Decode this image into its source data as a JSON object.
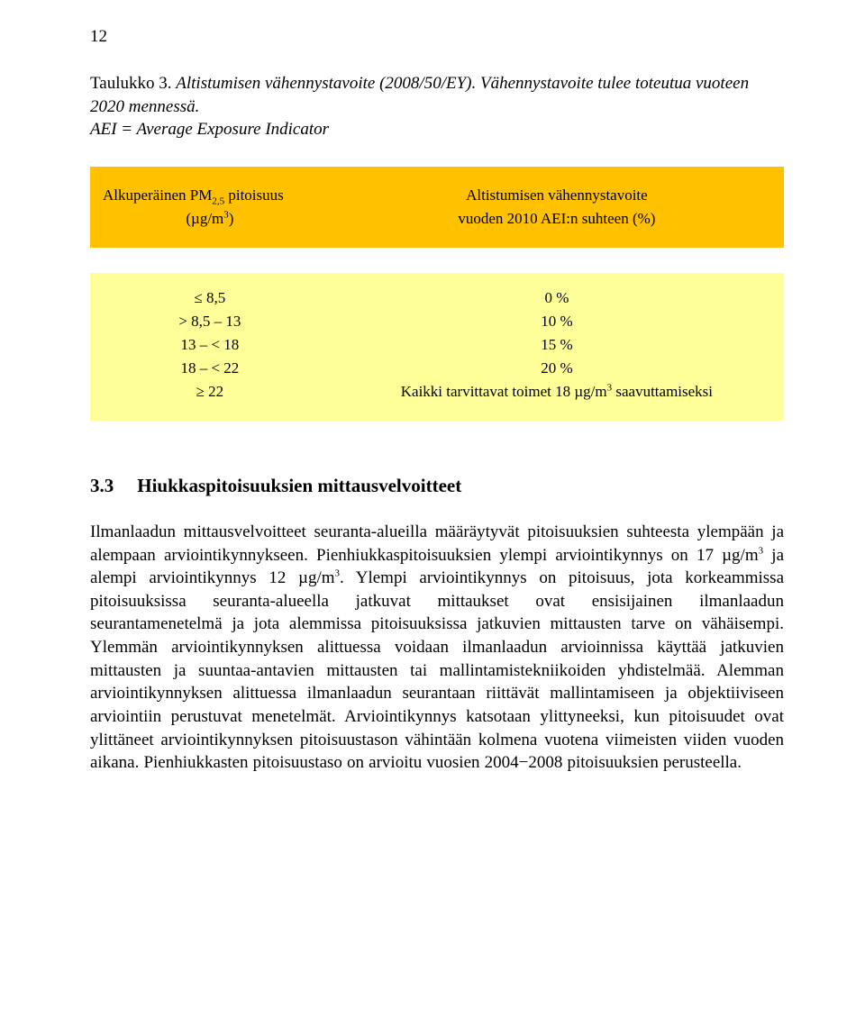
{
  "page_number": "12",
  "caption": {
    "label": "Taulukko 3.",
    "title_part1": "Altistumisen vähennystavoite (2008/50/EY). Vähennystavoite tulee toteutua vuoteen 2020 mennessä.",
    "title_part2": "AEI = Average Exposure Indicator"
  },
  "table": {
    "colors": {
      "header_bg": "#ffc100",
      "body_bg": "#ffff99",
      "text": "#000000"
    },
    "header_fontsize": 17,
    "body_fontsize": 17,
    "header": {
      "col1_line1": "Alkuperäinen PM",
      "col1_pm_sub": "2,5",
      "col1_line1_suffix": " pitoisuus",
      "col1_line2_pre": "(µg/m",
      "col1_line2_sup": "3",
      "col1_line2_post": ")",
      "col2_line1": "Altistumisen vähennystavoite",
      "col2_line2": "vuoden 2010 AEI:n suhteen (%)"
    },
    "rows": [
      {
        "c1": "≤ 8,5",
        "c2": "0 %"
      },
      {
        "c1": "> 8,5 – 13",
        "c2": "10 %"
      },
      {
        "c1": "13 – < 18",
        "c2": "15 %"
      },
      {
        "c1": "18 – < 22",
        "c2": "20 %"
      },
      {
        "c1": "≥ 22",
        "c2_pre": "Kaikki tarvittavat toimet 18 µg/m",
        "c2_sup": "3",
        "c2_post": " saavuttamiseksi"
      }
    ]
  },
  "section": {
    "number": "3.3",
    "title": "Hiukkaspitoisuuksien mittausvelvoitteet"
  },
  "paragraph": {
    "t1": "Ilmanlaadun mittausvelvoitteet seuranta-alueilla määräytyvät pitoisuuksien suhteesta ylempään ja alempaan arviointikynnykseen. Pienhiukkaspitoisuuksien ylempi arviointikynnys on 17 µg/m",
    "s1": "3",
    "t2": " ja alempi arviointikynnys 12 µg/m",
    "s2": "3",
    "t3": ". Ylempi arviointikynnys on pitoisuus, jota korkeammissa pitoisuuksissa seuranta-alueella jatkuvat mittaukset ovat ensisijainen ilmanlaadun seurantamenetelmä ja jota alemmissa pitoisuuksissa jatkuvien mittausten tarve on vähäisempi. Ylemmän arviointikynnyksen alittuessa voidaan ilmanlaadun arvioinnissa käyttää jatkuvien mittausten ja suuntaa-antavien mittausten tai mallintamistekniikoiden yhdistelmää. Alemman arviointikynnyksen alittuessa ilmanlaadun seurantaan riittävät mallintamiseen ja objektiiviseen arviointiin perustuvat menetelmät. Arviointikynnys katsotaan ylittyneeksi, kun pitoisuudet ovat ylittäneet arviointikynnyksen pitoisuustason vähintään kolmena vuotena viimeisten viiden vuoden aikana. Pienhiukkasten pitoisuustaso on arvioitu vuosien 2004−2008 pitoisuuksien perusteella."
  }
}
